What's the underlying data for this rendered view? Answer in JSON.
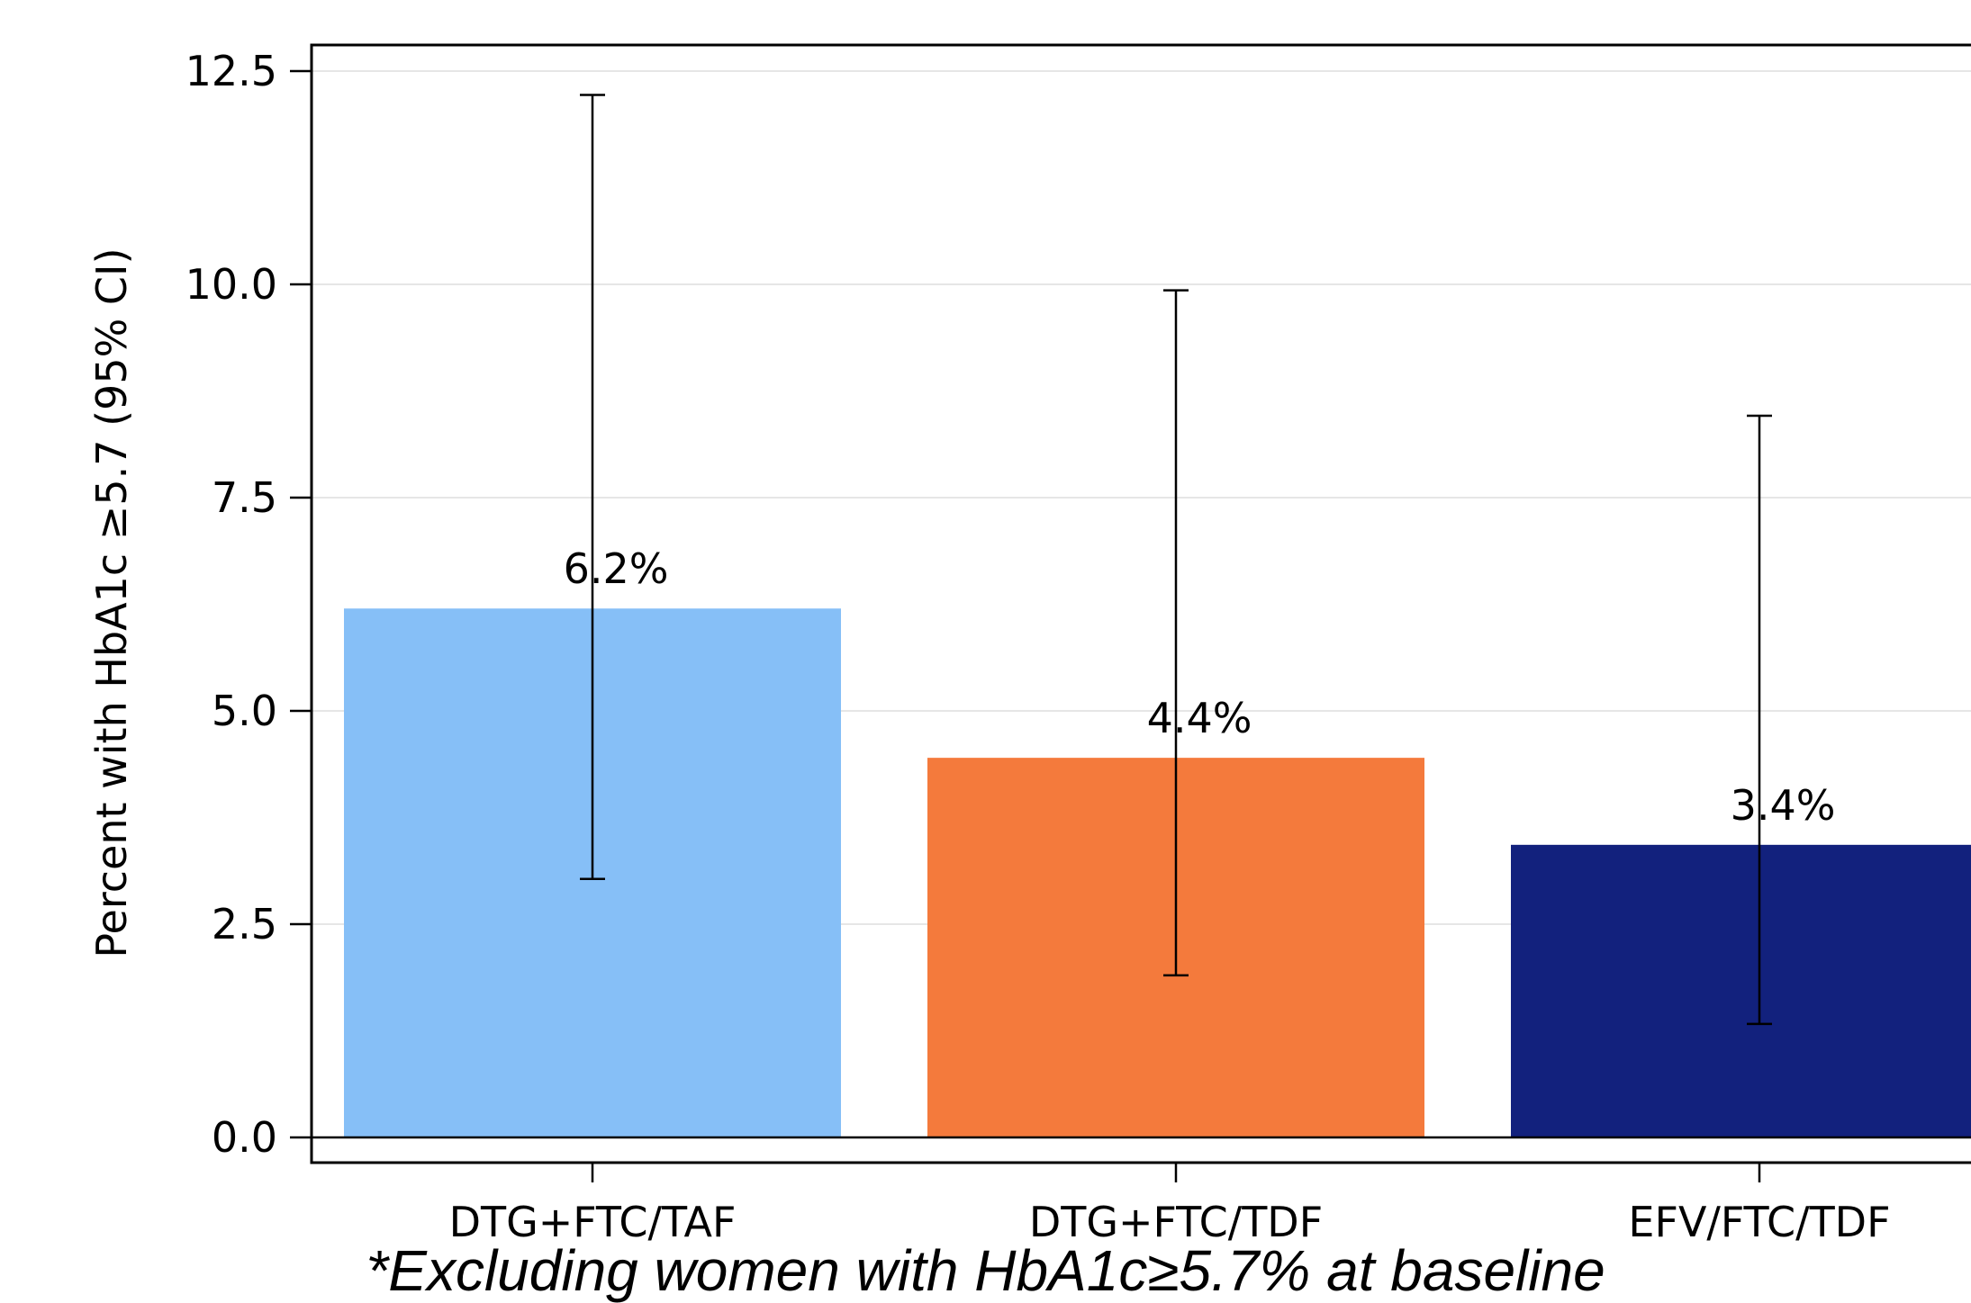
{
  "chart_data": {
    "type": "bar",
    "title": "",
    "xlabel": "",
    "ylabel": "Percent with HbA1c ≥5.7 (95% CI)",
    "ylim": [
      0,
      12.8
    ],
    "yticks": [
      "0.0",
      "2.5",
      "5.0",
      "7.5",
      "10.0",
      "12.5"
    ],
    "grid": true,
    "categories": [
      "DTG+FTC/TAF",
      "DTG+FTC/TDF",
      "EFV/FTC/TDF"
    ],
    "values": [
      6.2,
      4.45,
      3.43
    ],
    "data_labels": [
      "6.2%",
      "4.4%",
      "3.4%"
    ],
    "ci_lower": [
      3.03,
      1.9,
      1.33
    ],
    "ci_upper": [
      12.22,
      9.93,
      8.46
    ],
    "colors": [
      "#86bff7",
      "#f47a3c",
      "#12217d"
    ]
  },
  "footnote": "*Excluding women with HbA1c≥5.7% at baseline"
}
